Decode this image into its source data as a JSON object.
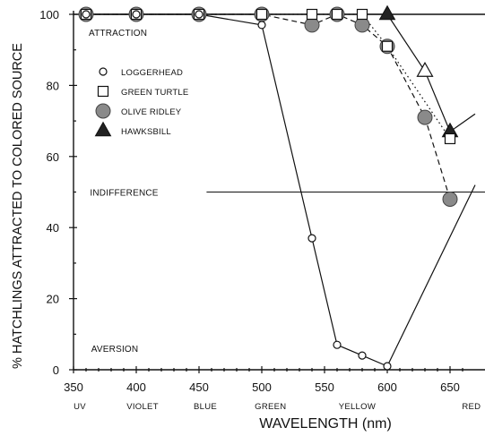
{
  "chart_data": {
    "type": "line",
    "xlabel": "WAVELENGTH (nm)",
    "ylabel": "% HATCHLINGS ATTRACTED TO COLORED SOURCE",
    "xlim": [
      350,
      670
    ],
    "ylim": [
      0,
      100
    ],
    "x_ticks": [
      350,
      400,
      450,
      500,
      550,
      600,
      650
    ],
    "y_ticks": [
      0,
      20,
      40,
      60,
      80,
      100
    ],
    "color_bands": [
      {
        "label": "UV",
        "x": 355
      },
      {
        "label": "VIOLET",
        "x": 405
      },
      {
        "label": "BLUE",
        "x": 455
      },
      {
        "label": "GREEN",
        "x": 507
      },
      {
        "label": "YELLOW",
        "x": 576
      },
      {
        "label": "RED",
        "x": 667
      }
    ],
    "annotations": [
      {
        "text": "ATTRACTION",
        "x": 355,
        "y": 95
      },
      {
        "text": "INDIFFERENCE",
        "x": 356,
        "y": 50
      },
      {
        "text": "AVERSION",
        "x": 357,
        "y": 6
      }
    ],
    "indifference_line": {
      "y": 50,
      "x_range": [
        456,
        670
      ]
    },
    "series": [
      {
        "name": "LOGGERHEAD",
        "marker": "circle-open",
        "line": "solid",
        "x": [
          360,
          400,
          450,
          500,
          540,
          560,
          580,
          600,
          670
        ],
        "y": [
          100,
          100,
          100,
          97,
          37,
          7,
          4,
          1,
          52
        ]
      },
      {
        "name": "GREEN TURTLE",
        "marker": "square-open",
        "line": "dotted",
        "x": [
          360,
          400,
          450,
          500,
          540,
          560,
          580,
          600,
          650
        ],
        "y": [
          100,
          100,
          100,
          100,
          100,
          100,
          100,
          91,
          65
        ]
      },
      {
        "name": "OLIVE RIDLEY",
        "marker": "circle-gray",
        "line": "dashed",
        "x": [
          360,
          400,
          450,
          500,
          540,
          560,
          580,
          600,
          630,
          650
        ],
        "y": [
          100,
          100,
          100,
          100,
          97,
          100,
          97,
          91,
          71,
          48
        ]
      },
      {
        "name": "HAWKSBILL",
        "marker": "triangle-filled",
        "line": "solid",
        "x": [
          360,
          400,
          450,
          500,
          540,
          560,
          580,
          600,
          630,
          650,
          670
        ],
        "y": [
          100,
          100,
          100,
          100,
          100,
          100,
          100,
          100,
          84,
          67,
          72
        ]
      }
    ],
    "grid": false,
    "legend_position": "upper-left inside plot"
  }
}
